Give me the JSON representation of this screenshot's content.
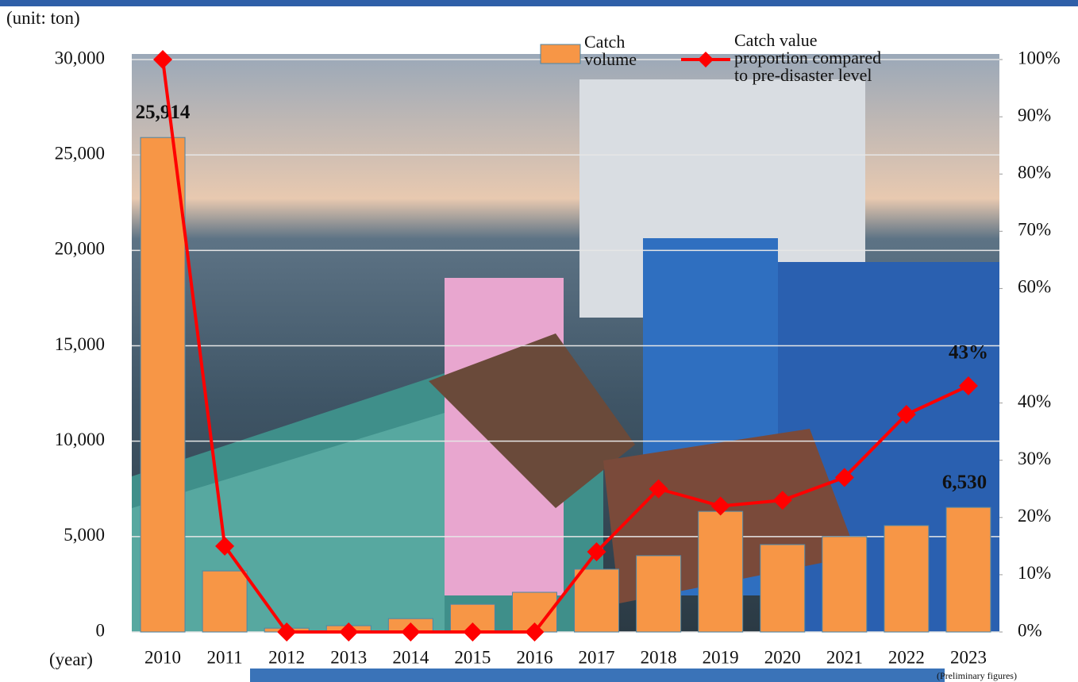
{
  "chart_data": {
    "type": "combo",
    "unit_label": "(unit: ton)",
    "x_label": "(year)",
    "note": "(Preliminary figures)",
    "categories": [
      "2010",
      "2011",
      "2012",
      "2013",
      "2014",
      "2015",
      "2016",
      "2017",
      "2018",
      "2019",
      "2020",
      "2021",
      "2022",
      "2023"
    ],
    "series": [
      {
        "name": "Catch volume",
        "type": "bar",
        "axis": "y",
        "color": "#f79646",
        "values": [
          25914,
          3200,
          200,
          330,
          700,
          1450,
          2080,
          3290,
          4000,
          6320,
          4580,
          5000,
          5580,
          6530
        ],
        "value_labels": [
          "25,914",
          null,
          null,
          null,
          null,
          null,
          null,
          null,
          null,
          null,
          null,
          null,
          null,
          "6,530"
        ]
      },
      {
        "name": "Catch value proportion compared to pre-disaster level",
        "type": "line",
        "axis": "y2",
        "color": "#ff0000",
        "values": [
          100,
          15,
          0,
          0,
          0,
          0,
          0,
          14,
          25,
          22,
          23,
          27,
          38,
          43
        ],
        "value_labels": [
          null,
          null,
          null,
          null,
          null,
          null,
          null,
          null,
          null,
          null,
          null,
          null,
          null,
          "43%"
        ]
      }
    ],
    "ylim": [
      0,
      30000
    ],
    "yticks": [
      0,
      {
        "value": 5000,
        "label": "5,000"
      },
      {
        "value": 10000,
        "label": "10,000"
      },
      {
        "value": 15000,
        "label": "15,000"
      },
      {
        "value": 20000,
        "label": "20,000"
      },
      {
        "value": 25000,
        "label": "25,000"
      },
      {
        "value": 30000,
        "label": "30,000"
      }
    ],
    "y2lim": [
      0,
      100
    ],
    "y2ticks": [
      {
        "value": 0,
        "label": "0%"
      },
      {
        "value": 10,
        "label": "10%"
      },
      {
        "value": 20,
        "label": "20%"
      },
      {
        "value": 30,
        "label": "30%"
      },
      {
        "value": 40,
        "label": "40%"
      },
      {
        "value": 60,
        "label": "60%"
      },
      {
        "value": 70,
        "label": "70%"
      },
      {
        "value": 80,
        "label": "80%"
      },
      {
        "value": 90,
        "label": "90%"
      },
      {
        "value": 100,
        "label": "100%"
      }
    ],
    "grid": true
  }
}
